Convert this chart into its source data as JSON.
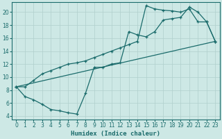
{
  "xlabel": "Humidex (Indice chaleur)",
  "bg_color": "#cde8e5",
  "line_color": "#1a6b6b",
  "grid_color": "#b0cfcc",
  "xlim": [
    -0.5,
    23.5
  ],
  "ylim": [
    3.5,
    21.5
  ],
  "xticks": [
    0,
    1,
    2,
    3,
    4,
    5,
    6,
    7,
    8,
    9,
    10,
    11,
    12,
    13,
    14,
    15,
    16,
    17,
    18,
    19,
    20,
    21,
    22,
    23
  ],
  "yticks": [
    4,
    6,
    8,
    10,
    12,
    14,
    16,
    18,
    20
  ],
  "line1_x": [
    0,
    1,
    2,
    3,
    4,
    5,
    6,
    7,
    8,
    9,
    10,
    11,
    12,
    13,
    14,
    15,
    16,
    17,
    18,
    19,
    20,
    21,
    22,
    23
  ],
  "line1_y": [
    8.5,
    7.0,
    6.5,
    5.8,
    5.0,
    4.8,
    4.5,
    4.3,
    7.5,
    11.5,
    11.5,
    12.0,
    12.2,
    17.0,
    16.5,
    16.2,
    17.0,
    18.8,
    19.0,
    19.2,
    20.8,
    20.0,
    18.5,
    15.5
  ],
  "line2_x": [
    0,
    1,
    2,
    3,
    4,
    5,
    6,
    7,
    8,
    9,
    10,
    11,
    12,
    13,
    14,
    15,
    16,
    17,
    18,
    19,
    20,
    21,
    22,
    23
  ],
  "line2_y": [
    8.5,
    8.5,
    9.5,
    10.5,
    11.0,
    11.5,
    12.0,
    12.2,
    12.5,
    13.0,
    13.5,
    14.0,
    14.5,
    15.0,
    15.5,
    21.0,
    20.5,
    20.3,
    20.2,
    20.0,
    20.5,
    18.5,
    18.5,
    15.5
  ],
  "line3_x": [
    0,
    23
  ],
  "line3_y": [
    8.5,
    15.5
  ]
}
